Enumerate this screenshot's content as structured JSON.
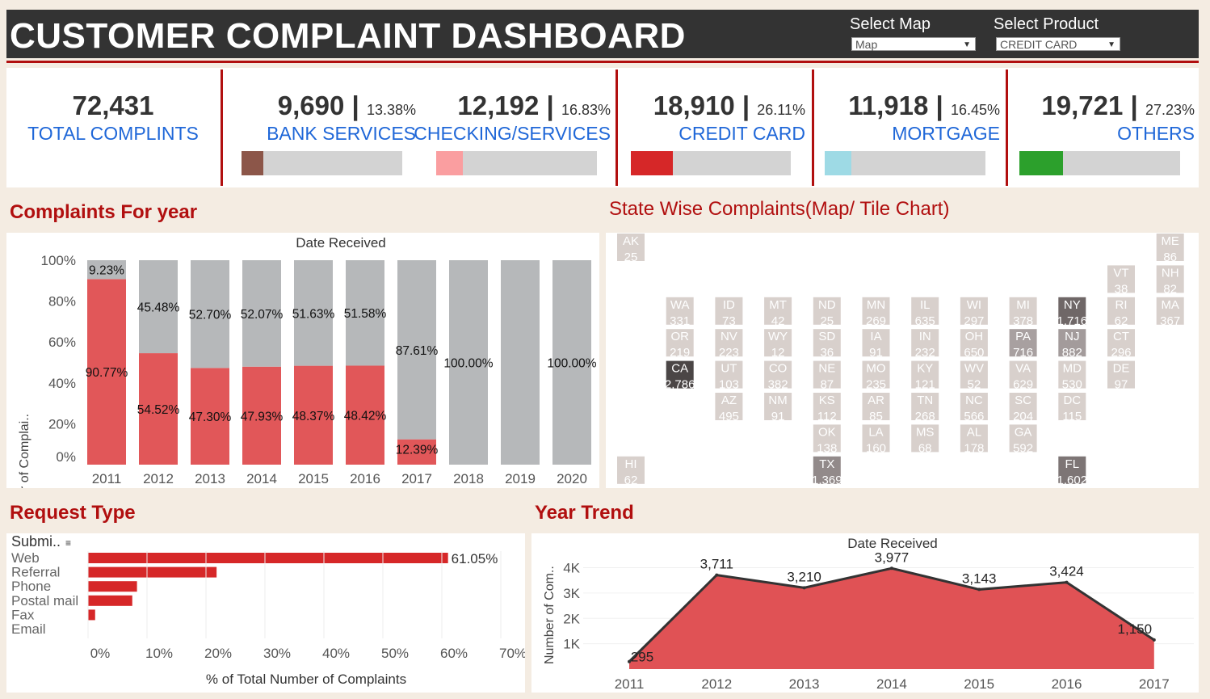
{
  "header": {
    "title": "CUSTOMER COMPLAINT DASHBOARD",
    "select_map_label": "Select Map",
    "select_map_value": "Map",
    "select_product_label": "Select Product",
    "select_product_value": "CREDIT CARD"
  },
  "kpis": {
    "total": {
      "value": "72,431",
      "label": "TOTAL COMPLINTS"
    },
    "items": [
      {
        "value": "9,690",
        "pct": "13.38%",
        "label": "BANK SERVICES",
        "fraction": 0.1338,
        "color": "#8c5649"
      },
      {
        "value": "12,192",
        "pct": "16.83%",
        "label": "CHECKING/SERVICES",
        "fraction": 0.1683,
        "color": "#fa9ea0"
      },
      {
        "value": "18,910",
        "pct": "26.11%",
        "label": "CREDIT CARD",
        "fraction": 0.2611,
        "color": "#d62728"
      },
      {
        "value": "11,918",
        "pct": "16.45%",
        "label": "MORTGAGE",
        "fraction": 0.1645,
        "color": "#9edae5"
      },
      {
        "value": "19,721",
        "pct": "27.23%",
        "label": "OTHERS",
        "fraction": 0.2723,
        "color": "#2ca02c"
      }
    ]
  },
  "sections": {
    "complaints_for_year": "Complaints For year",
    "state_wise": "State Wise Complaints(Map/ Tile Chart)",
    "request_type": "Request Type",
    "year_trend": "Year Trend"
  },
  "chart_data": [
    {
      "type": "bar",
      "stacked": true,
      "title": "Date Received",
      "ylabel": "% of Total Number of Complai..",
      "yticks": [
        "0%",
        "20%",
        "40%",
        "60%",
        "80%",
        "100%"
      ],
      "ylim": [
        0,
        100
      ],
      "categories": [
        "2011",
        "2012",
        "2013",
        "2014",
        "2015",
        "2016",
        "2017",
        "2018",
        "2019",
        "2020"
      ],
      "series": [
        {
          "values": [
            90.77,
            54.52,
            47.3,
            47.93,
            48.37,
            48.42,
            12.39,
            0,
            0,
            0
          ],
          "labels": [
            "90.77%",
            "54.52%",
            "47.30%",
            "47.93%",
            "48.37%",
            "48.42%",
            "12.39%",
            "",
            "",
            ""
          ],
          "color": "#e15759"
        },
        {
          "values": [
            9.23,
            45.48,
            52.7,
            52.07,
            51.63,
            51.58,
            87.61,
            100,
            100,
            100
          ],
          "labels": [
            "9.23%",
            "45.48%",
            "52.70%",
            "52.07%",
            "51.63%",
            "51.58%",
            "87.61%",
            "100.00%",
            "",
            "100.00%"
          ],
          "color": "#b6b8ba"
        }
      ]
    },
    {
      "type": "heatmap",
      "subtype": "tile-map",
      "tiles": [
        {
          "st": "AK",
          "v": "25",
          "c": 0,
          "r": 0
        },
        {
          "st": "ME",
          "v": "86",
          "c": 11,
          "r": 0
        },
        {
          "st": "VT",
          "v": "38",
          "c": 10,
          "r": 1
        },
        {
          "st": "NH",
          "v": "82",
          "c": 11,
          "r": 1
        },
        {
          "st": "WA",
          "v": "331",
          "c": 1,
          "r": 2
        },
        {
          "st": "ID",
          "v": "73",
          "c": 2,
          "r": 2
        },
        {
          "st": "MT",
          "v": "42",
          "c": 3,
          "r": 2
        },
        {
          "st": "ND",
          "v": "25",
          "c": 4,
          "r": 2
        },
        {
          "st": "MN",
          "v": "269",
          "c": 5,
          "r": 2
        },
        {
          "st": "IL",
          "v": "635",
          "c": 6,
          "r": 2
        },
        {
          "st": "WI",
          "v": "297",
          "c": 7,
          "r": 2
        },
        {
          "st": "MI",
          "v": "378",
          "c": 8,
          "r": 2
        },
        {
          "st": "NY",
          "v": "1,716",
          "c": 9,
          "r": 2
        },
        {
          "st": "RI",
          "v": "62",
          "c": 10,
          "r": 2
        },
        {
          "st": "MA",
          "v": "367",
          "c": 11,
          "r": 2
        },
        {
          "st": "OR",
          "v": "219",
          "c": 1,
          "r": 3
        },
        {
          "st": "NV",
          "v": "223",
          "c": 2,
          "r": 3
        },
        {
          "st": "WY",
          "v": "12",
          "c": 3,
          "r": 3
        },
        {
          "st": "SD",
          "v": "36",
          "c": 4,
          "r": 3
        },
        {
          "st": "IA",
          "v": "91",
          "c": 5,
          "r": 3
        },
        {
          "st": "IN",
          "v": "232",
          "c": 6,
          "r": 3
        },
        {
          "st": "OH",
          "v": "650",
          "c": 7,
          "r": 3
        },
        {
          "st": "PA",
          "v": "716",
          "c": 8,
          "r": 3
        },
        {
          "st": "NJ",
          "v": "882",
          "c": 9,
          "r": 3
        },
        {
          "st": "CT",
          "v": "296",
          "c": 10,
          "r": 3
        },
        {
          "st": "CA",
          "v": "2,786",
          "c": 1,
          "r": 4
        },
        {
          "st": "UT",
          "v": "103",
          "c": 2,
          "r": 4
        },
        {
          "st": "CO",
          "v": "382",
          "c": 3,
          "r": 4
        },
        {
          "st": "NE",
          "v": "87",
          "c": 4,
          "r": 4
        },
        {
          "st": "MO",
          "v": "235",
          "c": 5,
          "r": 4
        },
        {
          "st": "KY",
          "v": "121",
          "c": 6,
          "r": 4
        },
        {
          "st": "WV",
          "v": "52",
          "c": 7,
          "r": 4
        },
        {
          "st": "VA",
          "v": "629",
          "c": 8,
          "r": 4
        },
        {
          "st": "MD",
          "v": "530",
          "c": 9,
          "r": 4
        },
        {
          "st": "DE",
          "v": "97",
          "c": 10,
          "r": 4
        },
        {
          "st": "AZ",
          "v": "495",
          "c": 2,
          "r": 5
        },
        {
          "st": "NM",
          "v": "91",
          "c": 3,
          "r": 5
        },
        {
          "st": "KS",
          "v": "112",
          "c": 4,
          "r": 5
        },
        {
          "st": "AR",
          "v": "85",
          "c": 5,
          "r": 5
        },
        {
          "st": "TN",
          "v": "268",
          "c": 6,
          "r": 5
        },
        {
          "st": "NC",
          "v": "566",
          "c": 7,
          "r": 5
        },
        {
          "st": "SC",
          "v": "204",
          "c": 8,
          "r": 5
        },
        {
          "st": "DC",
          "v": "115",
          "c": 9,
          "r": 5
        },
        {
          "st": "OK",
          "v": "138",
          "c": 4,
          "r": 6
        },
        {
          "st": "LA",
          "v": "160",
          "c": 5,
          "r": 6
        },
        {
          "st": "MS",
          "v": "68",
          "c": 6,
          "r": 6
        },
        {
          "st": "AL",
          "v": "178",
          "c": 7,
          "r": 6
        },
        {
          "st": "GA",
          "v": "592",
          "c": 8,
          "r": 6
        },
        {
          "st": "HI",
          "v": "62",
          "c": 0,
          "r": 7
        },
        {
          "st": "TX",
          "v": "1,369",
          "c": 4,
          "r": 7
        },
        {
          "st": "FL",
          "v": "1,602",
          "c": 9,
          "r": 7
        }
      ]
    },
    {
      "type": "bar",
      "orientation": "horizontal",
      "header": "Submi..",
      "xlabel": "% of Total Number of Complaints",
      "xticks": [
        "0%",
        "10%",
        "20%",
        "30%",
        "40%",
        "50%",
        "60%",
        "70%"
      ],
      "xlim": [
        0,
        70
      ],
      "categories": [
        "Web",
        "Referral",
        "Phone",
        "Postal mail",
        "Fax",
        "Email"
      ],
      "values": [
        61.05,
        21.8,
        8.3,
        7.5,
        1.2,
        0
      ],
      "value_labels": [
        "61.05%",
        "",
        "",
        "",
        "",
        ""
      ],
      "color": "#d62728"
    },
    {
      "type": "area",
      "title": "Date Received",
      "ylabel": "Number of Com..",
      "yticks": [
        "1K",
        "2K",
        "3K",
        "4K"
      ],
      "ylim": [
        0,
        4400
      ],
      "x": [
        "2011",
        "2012",
        "2013",
        "2014",
        "2015",
        "2016",
        "2017"
      ],
      "values": [
        295,
        3711,
        3210,
        3977,
        3143,
        3424,
        1150
      ],
      "labels": [
        "295",
        "3,711",
        "3,210",
        "3,977",
        "3,143",
        "3,424",
        "1,150"
      ],
      "color": "#e05255"
    }
  ]
}
